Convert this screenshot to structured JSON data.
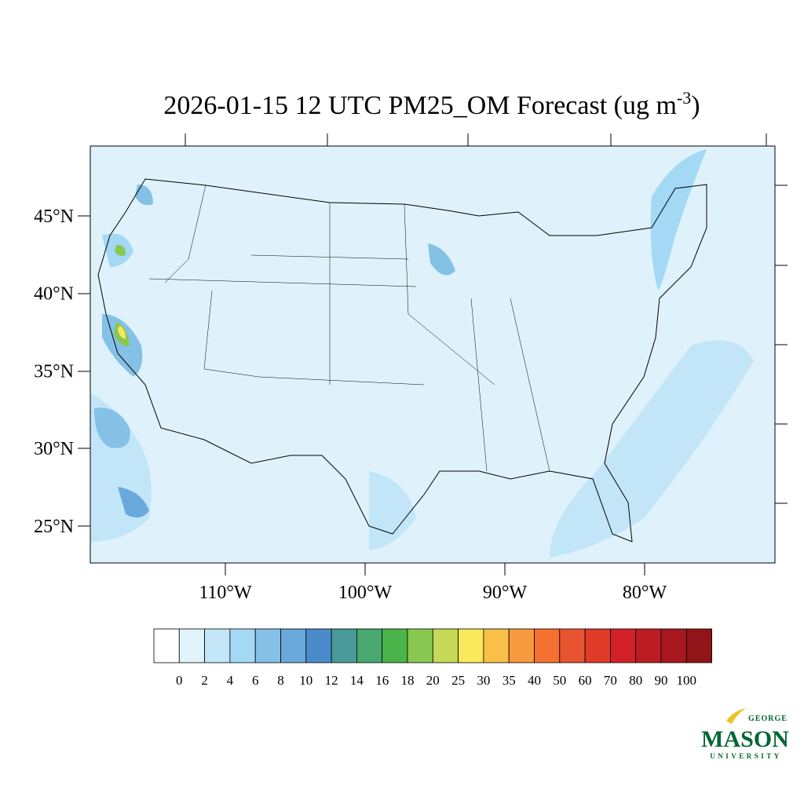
{
  "title": {
    "text": "2026-01-15 12 UTC PM25_OM Forecast (ug m",
    "superscript": "-3",
    "suffix": ")"
  },
  "latitude_labels": [
    "45°N",
    "40°N",
    "35°N",
    "30°N",
    "25°N"
  ],
  "longitude_labels": [
    "110°W",
    "100°W",
    "90°W",
    "80°W"
  ],
  "colorbar": {
    "colors": [
      "#ffffff",
      "#e0f3fb",
      "#c2e6f8",
      "#a3d9f5",
      "#85c1e6",
      "#69a9dc",
      "#4a8ccb",
      "#4a9a9a",
      "#48a870",
      "#4ab44a",
      "#88c850",
      "#c6d856",
      "#f8e85a",
      "#f8c048",
      "#f89a40",
      "#f47030",
      "#e85430",
      "#e03a28",
      "#d22028",
      "#be1c24",
      "#a81820",
      "#901418"
    ],
    "levels": [
      0,
      2,
      4,
      6,
      8,
      10,
      12,
      14,
      16,
      18,
      20,
      25,
      30,
      35,
      40,
      50,
      60,
      70,
      80,
      90,
      100
    ]
  },
  "logo": {
    "top": "GEORGE",
    "main": "MASON",
    "bottom": "UNIVERSITY"
  }
}
